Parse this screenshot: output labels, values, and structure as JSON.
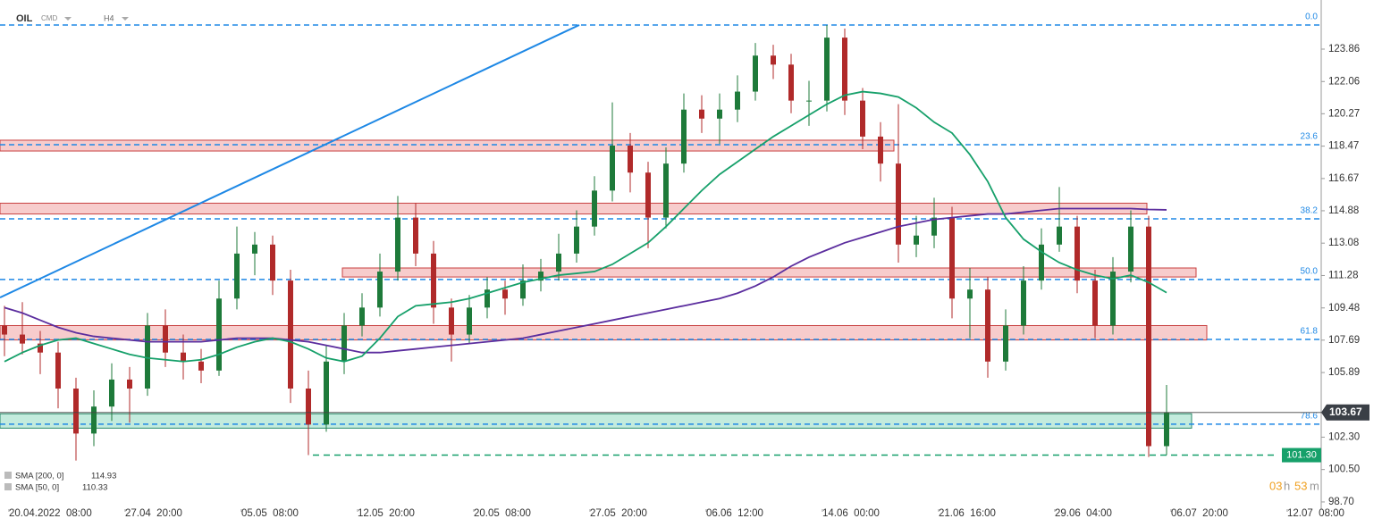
{
  "chart_data": {
    "type": "candlestick",
    "symbol": "OIL",
    "market": "CMD",
    "interval": "H4",
    "xlim": [
      -0.25,
      73.65
    ],
    "ylim": [
      98.3,
      126.59
    ],
    "xticks": [
      {
        "value": 0,
        "label": "20.04.2022  08:00"
      },
      {
        "value": 6.5,
        "label": "27.04  20:00"
      },
      {
        "value": 13,
        "label": "05.05  08:00"
      },
      {
        "value": 19.5,
        "label": "12.05  20:00"
      },
      {
        "value": 26,
        "label": "20.05  08:00"
      },
      {
        "value": 32.5,
        "label": "27.05  20:00"
      },
      {
        "value": 39,
        "label": "06.06  12:00"
      },
      {
        "value": 45.5,
        "label": "14.06  00:00"
      },
      {
        "value": 52,
        "label": "21.06  16:00"
      },
      {
        "value": 58.5,
        "label": "29.06  04:00"
      },
      {
        "value": 65,
        "label": "06.07  20:00"
      },
      {
        "value": 71.5,
        "label": "12.07  08:00"
      }
    ],
    "yticks": [
      123.86,
      122.06,
      120.27,
      118.47,
      116.67,
      114.88,
      113.08,
      111.28,
      109.48,
      107.69,
      105.89,
      {
        "value": 102.3,
        "label": "102.30"
      },
      {
        "value": 100.5,
        "label": "100.50"
      },
      {
        "value": 98.7,
        "label": "98.70"
      }
    ],
    "up_color": "#1e7a3a",
    "down_color": "#b02a2a",
    "candles": [
      [
        108.5,
        109.6,
        106.8,
        108.0
      ],
      [
        108.0,
        109.8,
        106.9,
        107.5
      ],
      [
        107.5,
        108.2,
        105.8,
        107.0
      ],
      [
        107.0,
        107.6,
        103.9,
        105.0
      ],
      [
        105.0,
        105.6,
        101.0,
        102.5
      ],
      [
        102.5,
        104.9,
        101.8,
        104.0
      ],
      [
        104.0,
        106.4,
        103.2,
        105.5
      ],
      [
        105.5,
        106.2,
        103.1,
        105.0
      ],
      [
        105.0,
        109.2,
        104.6,
        108.5
      ],
      [
        108.5,
        109.4,
        106.2,
        107.0
      ],
      [
        107.0,
        108.0,
        105.5,
        106.5
      ],
      [
        106.5,
        107.2,
        105.3,
        106.0
      ],
      [
        106.0,
        111.0,
        105.7,
        110.0
      ],
      [
        110.0,
        114.0,
        109.4,
        112.5
      ],
      [
        112.5,
        113.7,
        111.3,
        113.0
      ],
      [
        113.0,
        113.5,
        110.2,
        111.0
      ],
      [
        111.0,
        111.6,
        104.2,
        105.0
      ],
      [
        105.0,
        106.0,
        101.3,
        103.0
      ],
      [
        103.0,
        107.4,
        102.6,
        106.5
      ],
      [
        106.5,
        109.2,
        105.8,
        108.5
      ],
      [
        108.5,
        110.3,
        107.9,
        109.5
      ],
      [
        109.5,
        112.5,
        109.0,
        111.5
      ],
      [
        111.5,
        115.7,
        111.0,
        114.5
      ],
      [
        114.5,
        115.3,
        111.8,
        112.5
      ],
      [
        112.5,
        113.2,
        108.6,
        109.5
      ],
      [
        109.5,
        110.0,
        106.5,
        108.0
      ],
      [
        108.0,
        110.2,
        107.5,
        109.5
      ],
      [
        109.5,
        111.2,
        108.9,
        110.5
      ],
      [
        110.5,
        111.0,
        109.1,
        110.0
      ],
      [
        110.0,
        111.9,
        109.6,
        111.0
      ],
      [
        111.0,
        112.2,
        110.4,
        111.5
      ],
      [
        111.5,
        113.6,
        111.0,
        112.5
      ],
      [
        112.5,
        114.9,
        112.0,
        114.0
      ],
      [
        114.0,
        116.8,
        113.5,
        116.0
      ],
      [
        116.0,
        120.9,
        115.4,
        118.5
      ],
      [
        118.5,
        119.2,
        115.9,
        117.0
      ],
      [
        117.0,
        117.6,
        112.8,
        114.5
      ],
      [
        114.5,
        118.4,
        113.9,
        117.5
      ],
      [
        117.5,
        121.4,
        117.0,
        120.5
      ],
      [
        120.5,
        121.3,
        119.2,
        120.0
      ],
      [
        120.0,
        121.4,
        118.6,
        120.5
      ],
      [
        120.5,
        122.4,
        119.8,
        121.5
      ],
      [
        121.5,
        124.2,
        121.0,
        123.5
      ],
      [
        123.5,
        124.1,
        122.2,
        123.0
      ],
      [
        123.0,
        123.6,
        120.3,
        121.0
      ],
      [
        121.0,
        122.1,
        119.6,
        121.0
      ],
      [
        121.0,
        125.2,
        120.4,
        124.5
      ],
      [
        124.5,
        125.0,
        120.2,
        121.0
      ],
      [
        121.0,
        121.7,
        118.3,
        119.0
      ],
      [
        119.0,
        119.8,
        116.5,
        117.5
      ],
      [
        117.5,
        120.8,
        112.0,
        113.0
      ],
      [
        113.0,
        114.6,
        112.3,
        113.5
      ],
      [
        113.5,
        115.6,
        112.8,
        114.5
      ],
      [
        114.5,
        115.1,
        108.9,
        110.0
      ],
      [
        110.0,
        111.7,
        107.8,
        110.5
      ],
      [
        110.5,
        111.2,
        105.6,
        106.5
      ],
      [
        106.5,
        109.4,
        106.0,
        108.5
      ],
      [
        108.5,
        111.8,
        108.0,
        111.0
      ],
      [
        111.0,
        113.9,
        110.5,
        113.0
      ],
      [
        113.0,
        116.2,
        112.6,
        114.0
      ],
      [
        114.0,
        114.6,
        110.3,
        111.0
      ],
      [
        111.0,
        111.6,
        107.8,
        108.5
      ],
      [
        108.5,
        112.3,
        108.0,
        111.5
      ],
      [
        111.5,
        114.9,
        110.9,
        114.0
      ],
      [
        114.0,
        114.6,
        101.2,
        101.8
      ],
      [
        101.8,
        105.2,
        101.3,
        103.67
      ]
    ],
    "series": [
      {
        "name": "SMA [200, 0]",
        "color": "#5b2d9e",
        "values": [
          109.5,
          109.2,
          108.8,
          108.4,
          108.1,
          107.9,
          107.8,
          107.7,
          107.6,
          107.6,
          107.6,
          107.6,
          107.7,
          107.8,
          107.8,
          107.8,
          107.7,
          107.6,
          107.4,
          107.2,
          107.0,
          107.0,
          107.1,
          107.2,
          107.3,
          107.4,
          107.5,
          107.6,
          107.7,
          107.8,
          108.0,
          108.2,
          108.4,
          108.6,
          108.8,
          109.0,
          109.2,
          109.4,
          109.6,
          109.8,
          110.0,
          110.3,
          110.7,
          111.2,
          111.8,
          112.3,
          112.7,
          113.1,
          113.4,
          113.7,
          114.0,
          114.2,
          114.4,
          114.5,
          114.6,
          114.7,
          114.7,
          114.8,
          114.9,
          115.0,
          115.0,
          115.0,
          115.0,
          115.0,
          114.95,
          114.93
        ]
      },
      {
        "name": "SMA [50, 0]",
        "color": "#16a06a",
        "values": [
          106.5,
          107.0,
          107.4,
          107.7,
          107.8,
          107.5,
          107.2,
          106.9,
          106.7,
          106.6,
          106.5,
          106.6,
          106.9,
          107.3,
          107.6,
          107.8,
          107.6,
          107.2,
          106.7,
          106.5,
          106.8,
          107.8,
          109.0,
          109.6,
          109.7,
          109.8,
          110.0,
          110.3,
          110.6,
          110.9,
          111.1,
          111.3,
          111.4,
          111.5,
          111.9,
          112.5,
          113.1,
          114.0,
          115.0,
          116.0,
          116.9,
          117.6,
          118.3,
          119.0,
          119.6,
          120.2,
          120.8,
          121.3,
          121.5,
          121.4,
          121.2,
          120.6,
          119.8,
          119.2,
          118.0,
          116.5,
          114.5,
          113.3,
          112.6,
          112.0,
          111.6,
          111.3,
          111.1,
          111.3,
          110.9,
          110.33
        ]
      }
    ],
    "fib_color": "#1e88e5",
    "fib_levels": [
      {
        "value": 125.2,
        "label": "0.0"
      },
      {
        "value": 118.55,
        "label": "23.6"
      },
      {
        "value": 114.43,
        "label": "38.2"
      },
      {
        "value": 111.06,
        "label": "50.0"
      },
      {
        "value": 107.73,
        "label": "61.8"
      },
      {
        "value": 103.02,
        "label": "78.6"
      }
    ],
    "zones": [
      {
        "range": [
          118.2,
          118.8
        ],
        "x": [
          -0.25,
          49.75
        ],
        "color": "#f4b6b6"
      },
      {
        "range": [
          114.7,
          115.3
        ],
        "x": [
          -0.25,
          63.9
        ],
        "color": "#f4b6b6"
      },
      {
        "range": [
          111.2,
          111.7
        ],
        "x": [
          18.9,
          66.65
        ],
        "color": "#f4b6b6"
      },
      {
        "range": [
          107.7,
          108.5
        ],
        "x": [
          -0.25,
          67.25
        ],
        "color": "#f4b6b6"
      },
      {
        "range": [
          102.8,
          103.6
        ],
        "x": [
          -0.25,
          66.4
        ],
        "color": "#a9e3cf"
      }
    ],
    "trendline": {
      "x": [
        -0.25,
        32.15
      ],
      "y": [
        110.06,
        125.2
      ],
      "color": "#1e88e5"
    },
    "support": {
      "value": 101.3,
      "value_label": "101.30",
      "x": [
        17.25,
        71.25
      ],
      "color": "#16a06a"
    },
    "countdown": {
      "hours": "03",
      "h": "h",
      "minutes": "53",
      "m": "m"
    }
  }
}
